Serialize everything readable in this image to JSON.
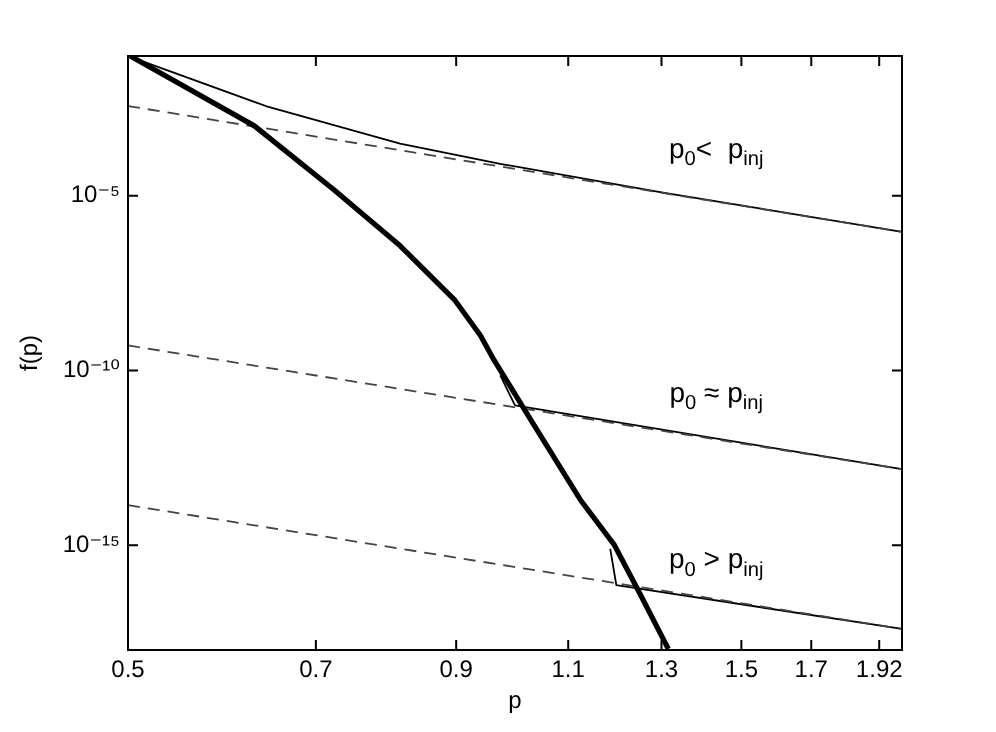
{
  "chart_data": {
    "type": "line",
    "xlabel": "p",
    "ylabel": "f(p)",
    "log": "xy",
    "grid": false,
    "legend": false,
    "marker": "none",
    "xlim": [
      0.5,
      2
    ],
    "xticks": [
      0.5,
      0.7,
      0.9,
      1.1,
      1.3,
      1.5,
      1.7,
      1.92
    ],
    "ylim": [
      1e-18,
      0.1
    ],
    "yticks": [
      {
        "value": 1e-05,
        "label": "10⁻⁵"
      },
      {
        "value": 1e-10,
        "label": "10⁻¹⁰"
      },
      {
        "value": 1e-15,
        "label": "10⁻¹⁵"
      }
    ],
    "series": [
      {
        "color": "#000000",
        "line_style": "solid",
        "x": [
          0.502,
          0.627,
          0.723,
          0.814,
          0.897,
          0.94,
          0.963,
          1.035,
          1.124,
          1.195,
          1.25,
          1.316
        ],
        "values": [
          0.1,
          0.001,
          1.48e-05,
          3.7e-07,
          1.07e-08,
          1e-09,
          2e-10,
          2.7e-12,
          2e-14,
          1e-15,
          4.3e-17,
          1.07e-18
        ]
      },
      {
        "color": "#444444",
        "line_style": "dashed",
        "x": [
          0.5,
          2
        ],
        "values": [
          0.0037,
          9.3e-07
        ]
      },
      {
        "color": "#000000",
        "line_style": "solid",
        "x": [
          0.5,
          0.64,
          0.814,
          0.974,
          1.3,
          2
        ],
        "values": [
          0.1,
          0.0037,
          0.00031,
          8.2e-05,
          1.25e-05,
          9.3e-07
        ]
      },
      {
        "color": "#444444",
        "line_style": "dashed",
        "x": [
          0.5,
          2
        ],
        "values": [
          5.2e-10,
          1.5e-13
        ]
      },
      {
        "color": "#000000",
        "line_style": "solid",
        "x": [
          0.974,
          1.0,
          2
        ],
        "values": [
          7.2e-11,
          1e-11,
          1.5e-13
        ]
      },
      {
        "color": "#444444",
        "line_style": "dashed",
        "x": [
          0.5,
          2
        ],
        "values": [
          1.4e-14,
          4e-18
        ]
      },
      {
        "color": "#000000",
        "line_style": "solid",
        "x": [
          1.186,
          1.199,
          2
        ],
        "values": [
          7.8e-16,
          7.2e-17,
          4e-18
        ]
      }
    ],
    "annotations": [
      "p$_{0}$<  p$_{inj}$",
      "p$_{0}$ ≈ p$_{inj}$",
      "p$_{0}$ > p$_{inj}$"
    ]
  }
}
